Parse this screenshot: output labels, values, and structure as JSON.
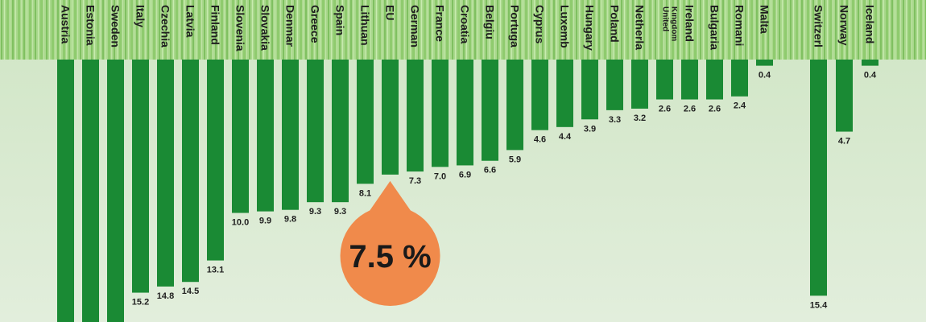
{
  "chart_data": {
    "type": "bar",
    "orientation": "downward",
    "title": "",
    "xlabel": "",
    "ylabel": "",
    "ylim": [
      0,
      20
    ],
    "grid": false,
    "categories": [
      "Austria",
      "Estonia",
      "Sweden",
      "Italy",
      "Czechia",
      "Latvia",
      "Finland",
      "Slovenia",
      "Slovakia",
      "Denmark",
      "Greece",
      "Spain",
      "Lithuania",
      "EU",
      "Germany",
      "France",
      "Croatia",
      "Belgium",
      "Portugal",
      "Cyprus",
      "Luxembourg",
      "Hungary",
      "Poland",
      "Netherlands",
      "United Kingdom",
      "Ireland",
      "Bulgaria",
      "Romania",
      "Malta",
      "Switzerland",
      "Norway",
      "Iceland"
    ],
    "category_labels": [
      "Austria",
      "Estonia",
      "Sweden",
      "Italy",
      "Czechia",
      "Latvia",
      "Finland",
      "Slovenia",
      "Slovakia",
      "Denmar",
      "Greece",
      "Spain",
      "Lithuan",
      "EU",
      "German",
      "France",
      "Croatia",
      "Belgiu",
      "Portuga",
      "Cyprus",
      "Luxemb",
      "Hungary",
      "Poland",
      "Netherla",
      "United Kingdom",
      "Ireland",
      "Bulgaria",
      "Romani",
      "Malta",
      "Switzerl",
      "Norway",
      "Iceland"
    ],
    "values": [
      null,
      null,
      null,
      15.2,
      14.8,
      14.5,
      13.1,
      10.0,
      9.9,
      9.8,
      9.3,
      9.3,
      8.1,
      7.5,
      7.3,
      7.0,
      6.9,
      6.6,
      5.9,
      4.6,
      4.4,
      3.9,
      3.3,
      3.2,
      2.6,
      2.6,
      2.6,
      2.4,
      0.4,
      15.4,
      4.7,
      0.4
    ],
    "value_labels": [
      "",
      "",
      "",
      "15.2",
      "14.8",
      "14.5",
      "13.1",
      "10.0",
      "9.9",
      "9.8",
      "9.3",
      "9.3",
      "8.1",
      "",
      "7.3",
      "7.0",
      "6.9",
      "6.6",
      "5.9",
      "4.6",
      "4.4",
      "3.9",
      "3.3",
      "3.2",
      "2.6",
      "2.6",
      "2.6",
      "2.4",
      "0.4",
      "15.4",
      "4.7",
      "0.4"
    ],
    "callout": {
      "category": "EU",
      "label": "7.5 %"
    },
    "colors": {
      "bar": "#1a8a34",
      "callout": "#f08a4b",
      "background": "#d7e8cf",
      "header": "#9fd17f"
    }
  }
}
